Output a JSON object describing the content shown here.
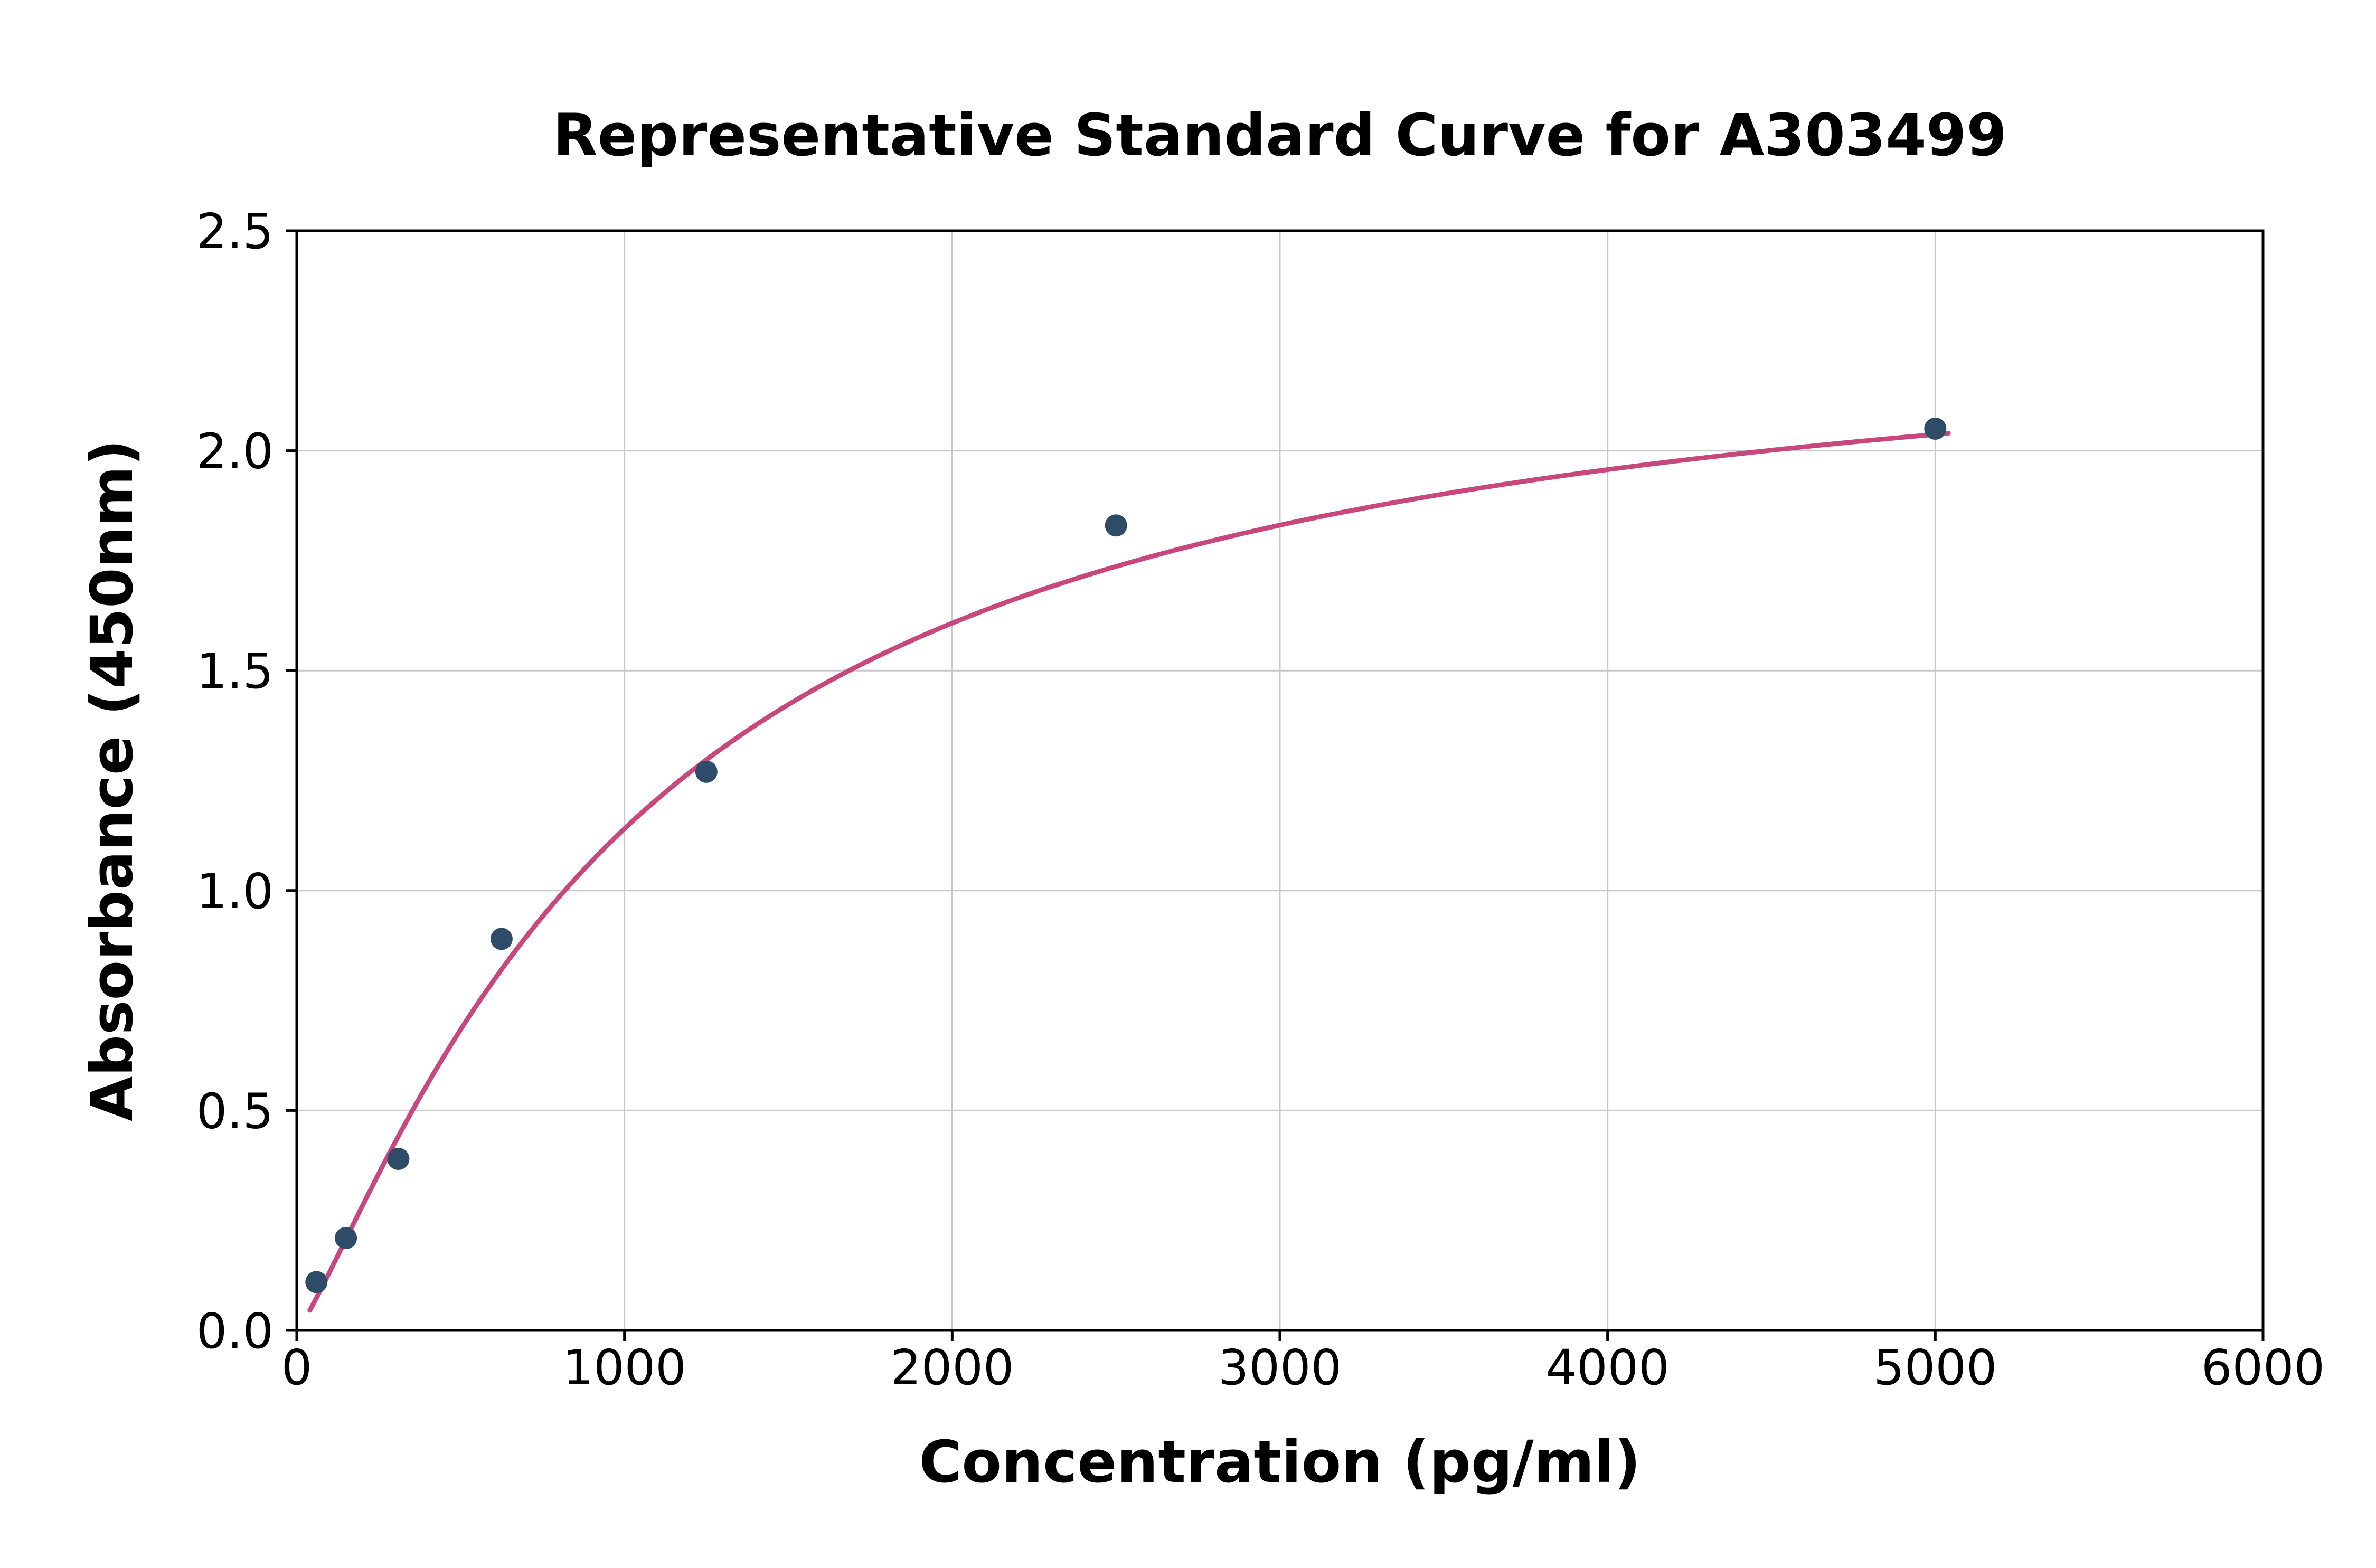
{
  "chart_data": {
    "type": "scatter",
    "title": "Representative Standard Curve for A303499",
    "xlabel": "Concentration (pg/ml)",
    "ylabel": "Absorbance (450nm)",
    "xlim": [
      0,
      6000
    ],
    "ylim": [
      0,
      2.5
    ],
    "x_ticks": [
      0,
      1000,
      2000,
      3000,
      4000,
      5000,
      6000
    ],
    "x_tick_labels": [
      "0",
      "1000",
      "2000",
      "3000",
      "4000",
      "5000",
      "6000"
    ],
    "y_ticks": [
      0,
      0.5,
      1.0,
      1.5,
      2.0,
      2.5
    ],
    "y_tick_labels": [
      "0.0",
      "0.5",
      "1.0",
      "1.5",
      "2.0",
      "2.5"
    ],
    "grid": true,
    "legend": "none",
    "points": [
      {
        "x": 60,
        "y": 0.11
      },
      {
        "x": 150,
        "y": 0.21
      },
      {
        "x": 310,
        "y": 0.39
      },
      {
        "x": 625,
        "y": 0.89
      },
      {
        "x": 1250,
        "y": 1.27
      },
      {
        "x": 2500,
        "y": 1.83
      },
      {
        "x": 5000,
        "y": 2.05
      }
    ],
    "fit_curve": {
      "model": "4PL",
      "params": {
        "min": 0.0,
        "max": 2.35,
        "ec50": 1050,
        "hill": 1.2
      },
      "x_range": [
        40,
        5040
      ]
    },
    "colors": {
      "point": "#2e4b68",
      "curve": "#c8487e",
      "grid": "#c8c8c8",
      "axis": "#000000",
      "background": "#ffffff"
    }
  }
}
